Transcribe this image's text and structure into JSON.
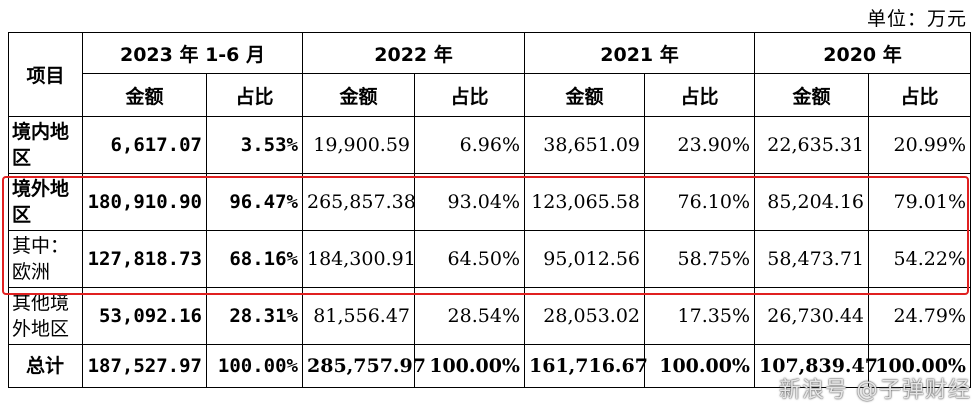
{
  "unit_label": "单位：万元",
  "header": {
    "item": "项目",
    "periods": [
      "2023 年 1-6 月",
      "2022 年",
      "2021 年",
      "2020 年"
    ],
    "amount": "金额",
    "ratio": "占比"
  },
  "rows": [
    {
      "item": "境内地区",
      "bold_item": true,
      "cells": [
        "6,617.07",
        "3.53%",
        "19,900.59",
        "6.96%",
        "38,651.09",
        "23.90%",
        "22,635.31",
        "20.99%"
      ]
    },
    {
      "item": "境外地区",
      "bold_item": true,
      "cells": [
        "180,910.90",
        "96.47%",
        "265,857.38",
        "93.04%",
        "123,065.58",
        "76.10%",
        "85,204.16",
        "79.01%"
      ]
    },
    {
      "item": "其中：欧洲",
      "bold_item": false,
      "cells": [
        "127,818.73",
        "68.16%",
        "184,300.91",
        "64.50%",
        "95,012.56",
        "58.75%",
        "58,473.71",
        "54.22%"
      ]
    },
    {
      "item": "其他境外地区",
      "bold_item": false,
      "cells": [
        "53,092.16",
        "28.31%",
        "81,556.47",
        "28.54%",
        "28,053.02",
        "17.35%",
        "26,730.44",
        "24.79%"
      ]
    }
  ],
  "total": {
    "item": "总计",
    "cells": [
      "187,527.97",
      "100.00%",
      "285,757.97",
      "100.00%",
      "161,716.67",
      "100.00%",
      "107,839.47",
      "100.00%"
    ]
  },
  "watermark": "新浪号 @子弹财经"
}
